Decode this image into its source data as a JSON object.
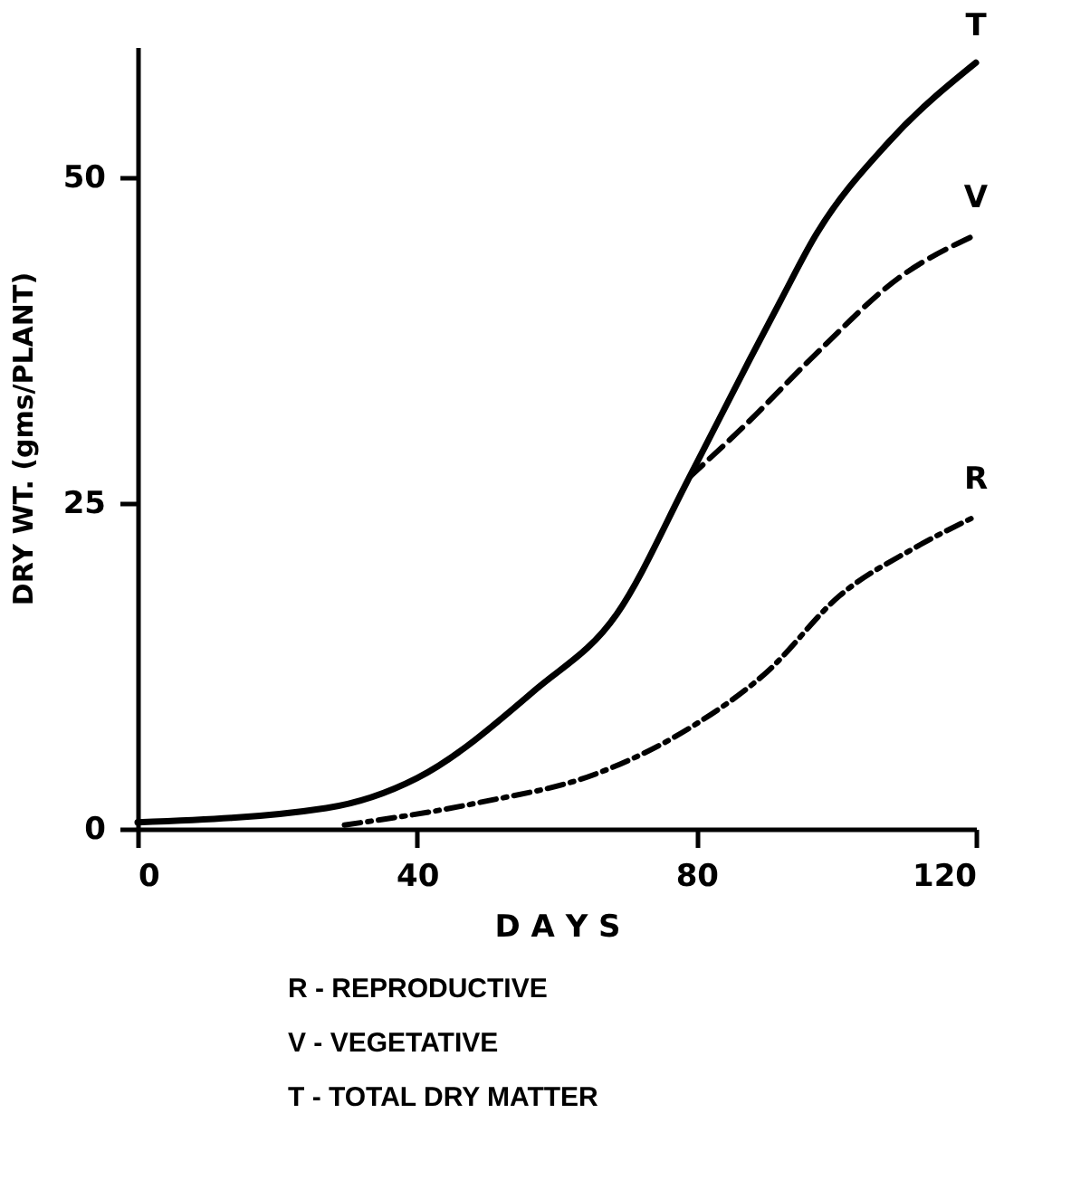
{
  "chart_data": {
    "type": "line",
    "xlabel": "D A Y S",
    "ylabel": "DRY WT. (gms/PLANT)",
    "xlim": [
      0,
      120
    ],
    "ylim": [
      0,
      60
    ],
    "xticks": [
      0,
      40,
      80,
      120
    ],
    "yticks": [
      0,
      25,
      50
    ],
    "grid": false,
    "marker": "none",
    "series": [
      {
        "name": "T",
        "color": "#000000",
        "line_style": "solid",
        "x": [
          0,
          27,
          40,
          57,
          68.6,
          79,
          87.6,
          92,
          97,
          107.5,
          120
        ],
        "values": [
          0.5,
          1.6,
          3.9,
          10.7,
          16.5,
          27,
          36,
          40.5,
          45.5,
          52.7,
          58.8
        ]
      },
      {
        "name": "V",
        "color": "#000000",
        "line_style": "dashed",
        "x": [
          79,
          86.8,
          97,
          109,
          120
        ],
        "values": [
          27,
          30.9,
          36.4,
          42.3,
          45.6
        ]
      },
      {
        "name": "R",
        "color": "#000000",
        "line_style": "dashdot",
        "x": [
          29.6,
          48.7,
          66,
          79.8,
          90,
          100.5,
          111,
          120
        ],
        "values": [
          0.3,
          2.0,
          4.3,
          8,
          12,
          17.9,
          21.5,
          24
        ]
      }
    ],
    "annotations": [
      "R -  REPRODUCTIVE",
      "V  -  VEGETATIVE",
      "T  -  TOTAL  DRY  MATTER"
    ]
  }
}
